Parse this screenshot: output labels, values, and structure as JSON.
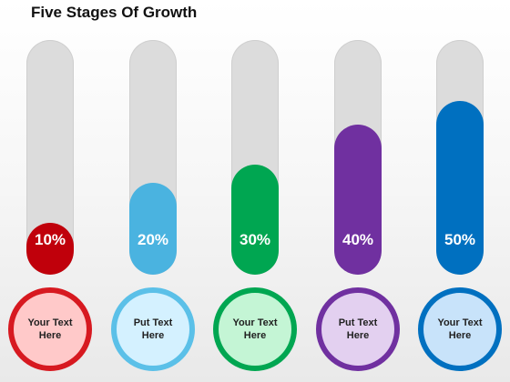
{
  "title": "Five Stages Of Growth",
  "stages": [
    {
      "percent_label": "10%",
      "level": 0.22,
      "color": "#c0000b",
      "ring": "#d71920",
      "circle_bg": "#ffc9c9",
      "text": "Your Text\nHere"
    },
    {
      "percent_label": "20%",
      "level": 0.39,
      "color": "#4ab3e0",
      "ring": "#5bc0e8",
      "circle_bg": "#d4f1ff",
      "text": "Put Text\nHere"
    },
    {
      "percent_label": "30%",
      "level": 0.47,
      "color": "#00a651",
      "ring": "#00a651",
      "circle_bg": "#c4f5d5",
      "text": "Your Text\nHere"
    },
    {
      "percent_label": "40%",
      "level": 0.64,
      "color": "#7030a0",
      "ring": "#7030a0",
      "circle_bg": "#e3d0f0",
      "text": "Put Text\nHere"
    },
    {
      "percent_label": "50%",
      "level": 0.74,
      "color": "#0070c0",
      "ring": "#0070c0",
      "circle_bg": "#c8e3fa",
      "text": "Your Text\nHere"
    }
  ]
}
